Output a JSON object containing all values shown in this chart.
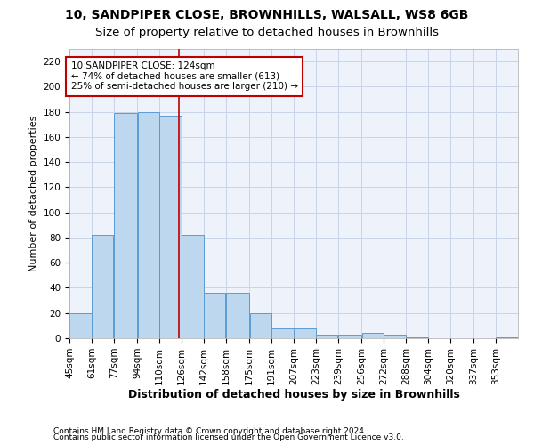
{
  "title1": "10, SANDPIPER CLOSE, BROWNHILLS, WALSALL, WS8 6GB",
  "title2": "Size of property relative to detached houses in Brownhills",
  "xlabel": "Distribution of detached houses by size in Brownhills",
  "ylabel": "Number of detached properties",
  "footer1": "Contains HM Land Registry data © Crown copyright and database right 2024.",
  "footer2": "Contains public sector information licensed under the Open Government Licence v3.0.",
  "annotation_line1": "10 SANDPIPER CLOSE: 124sqm",
  "annotation_line2": "← 74% of detached houses are smaller (613)",
  "annotation_line3": "25% of semi-detached houses are larger (210) →",
  "property_size": 124,
  "bar_edges": [
    45,
    61,
    77,
    94,
    110,
    126,
    142,
    158,
    175,
    191,
    207,
    223,
    239,
    256,
    272,
    288,
    304,
    320,
    337,
    353,
    369
  ],
  "bar_values": [
    20,
    82,
    179,
    180,
    177,
    82,
    36,
    36,
    20,
    8,
    8,
    3,
    3,
    4,
    3,
    1,
    0,
    0,
    0,
    1
  ],
  "bar_color": "#bdd7ee",
  "bar_edge_color": "#5b9bd5",
  "vline_color": "#c00000",
  "grid_color": "#c8d4e8",
  "background_color": "#eef2fa",
  "box_edge_color": "#c00000",
  "ylim": [
    0,
    230
  ],
  "yticks": [
    0,
    20,
    40,
    60,
    80,
    100,
    120,
    140,
    160,
    180,
    200,
    220
  ],
  "title1_fontsize": 10,
  "title2_fontsize": 9.5,
  "xlabel_fontsize": 9,
  "ylabel_fontsize": 8,
  "tick_fontsize": 7.5,
  "annot_fontsize": 7.5,
  "footer_fontsize": 6.5
}
